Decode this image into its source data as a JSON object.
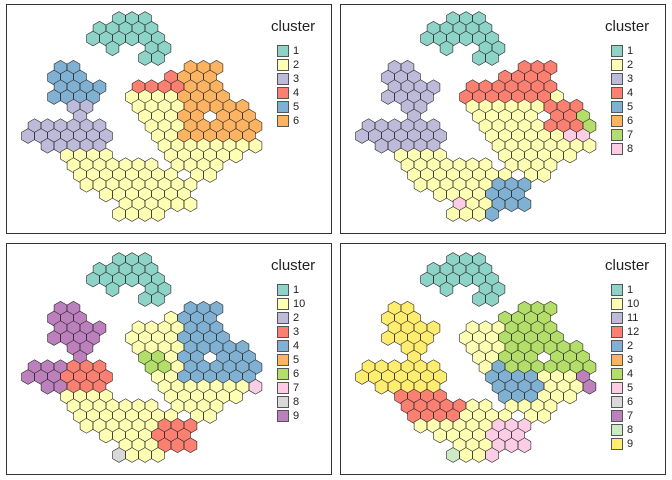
{
  "chart_data": [
    {
      "type": "hexbin-map",
      "legend_title": "cluster",
      "legend": [
        {
          "label": "1",
          "color": "#8DD3C7"
        },
        {
          "label": "2",
          "color": "#FFFFB3"
        },
        {
          "label": "3",
          "color": "#BEBADA"
        },
        {
          "label": "4",
          "color": "#FB8072"
        },
        {
          "label": "5",
          "color": "#80B1D3"
        },
        {
          "label": "6",
          "color": "#FDB462"
        }
      ]
    },
    {
      "type": "hexbin-map",
      "legend_title": "cluster",
      "legend": [
        {
          "label": "1",
          "color": "#8DD3C7"
        },
        {
          "label": "2",
          "color": "#FFFFB3"
        },
        {
          "label": "3",
          "color": "#BEBADA"
        },
        {
          "label": "4",
          "color": "#FB8072"
        },
        {
          "label": "5",
          "color": "#80B1D3"
        },
        {
          "label": "6",
          "color": "#FDB462"
        },
        {
          "label": "7",
          "color": "#B3DE69"
        },
        {
          "label": "8",
          "color": "#FCCDE5"
        }
      ]
    },
    {
      "type": "hexbin-map",
      "legend_title": "cluster",
      "legend": [
        {
          "label": "1",
          "color": "#8DD3C7"
        },
        {
          "label": "10",
          "color": "#FFFFB3"
        },
        {
          "label": "2",
          "color": "#BEBADA"
        },
        {
          "label": "3",
          "color": "#FB8072"
        },
        {
          "label": "4",
          "color": "#80B1D3"
        },
        {
          "label": "5",
          "color": "#FDB462"
        },
        {
          "label": "6",
          "color": "#B3DE69"
        },
        {
          "label": "7",
          "color": "#FCCDE5"
        },
        {
          "label": "8",
          "color": "#D9D9D9"
        },
        {
          "label": "9",
          "color": "#BC80BD"
        }
      ]
    },
    {
      "type": "hexbin-map",
      "legend_title": "cluster",
      "legend": [
        {
          "label": "1",
          "color": "#8DD3C7"
        },
        {
          "label": "10",
          "color": "#FFFFB3"
        },
        {
          "label": "11",
          "color": "#BEBADA"
        },
        {
          "label": "12",
          "color": "#FB8072"
        },
        {
          "label": "2",
          "color": "#80B1D3"
        },
        {
          "label": "3",
          "color": "#FDB462"
        },
        {
          "label": "4",
          "color": "#B3DE69"
        },
        {
          "label": "5",
          "color": "#FCCDE5"
        },
        {
          "label": "6",
          "color": "#D9D9D9"
        },
        {
          "label": "7",
          "color": "#BC80BD"
        },
        {
          "label": "8",
          "color": "#CCEBC5"
        },
        {
          "label": "9",
          "color": "#FFED6F"
        }
      ]
    }
  ]
}
